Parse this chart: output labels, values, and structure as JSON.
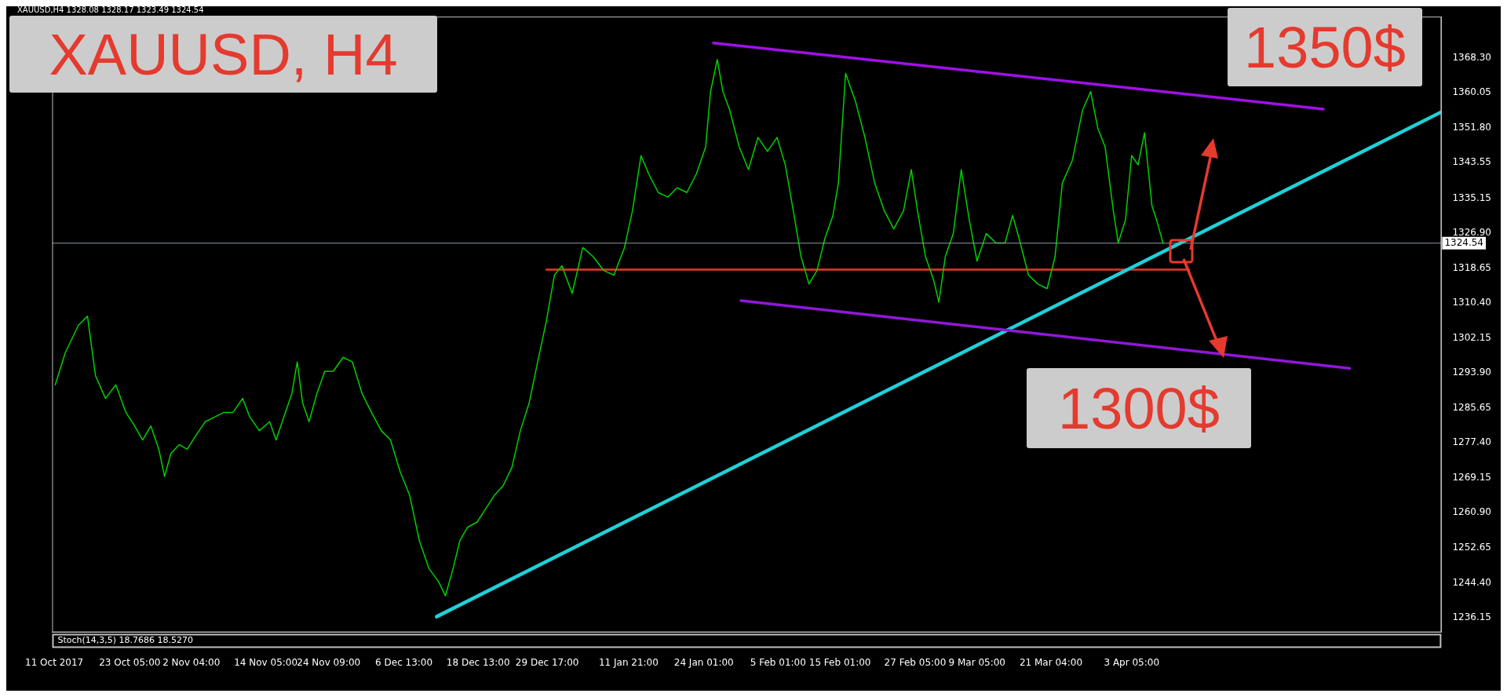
{
  "chart_data": {
    "type": "line",
    "title": "XAUUSD, H4",
    "subtitle": "XAUUSD,H4 1328.08 1328.17 1323.49 1324.54",
    "annotations": [
      "1350$",
      "1300$",
      "Stoch(14,3,5) 18.7686 18.5270"
    ],
    "xlim": [
      "2017-10-10T16:00",
      "2018-05-23T07:00"
    ],
    "ylim": [
      1232.7,
      1378
    ],
    "xticks": [
      {
        "value": "2017-10-11T00:00",
        "label": "11 Oct 2017"
      },
      {
        "value": "2017-10-23T05:00",
        "label": "23 Oct 05:00"
      },
      {
        "value": "2017-11-02T04:00",
        "label": "2 Nov 04:00"
      },
      {
        "value": "2017-11-14T05:00",
        "label": "14 Nov 05:00"
      },
      {
        "value": "2017-11-24T09:00",
        "label": "24 Nov 09:00"
      },
      {
        "value": "2017-12-06T13:00",
        "label": "6 Dec 13:00"
      },
      {
        "value": "2017-12-18T13:00",
        "label": "18 Dec 13:00"
      },
      {
        "value": "2017-12-29T17:00",
        "label": "29 Dec 17:00"
      },
      {
        "value": "2018-01-11T21:00",
        "label": "11 Jan 21:00"
      },
      {
        "value": "2018-01-24T01:00",
        "label": "24 Jan 01:00"
      },
      {
        "value": "2018-02-05T01:00",
        "label": "5 Feb 01:00"
      },
      {
        "value": "2018-02-15T01:00",
        "label": "15 Feb 01:00"
      },
      {
        "value": "2018-02-27T05:00",
        "label": "27 Feb 05:00"
      },
      {
        "value": "2018-03-09T05:00",
        "label": "9 Mar 05:00"
      },
      {
        "value": "2018-03-21T04:00",
        "label": "21 Mar 04:00"
      },
      {
        "value": "2018-04-03T05:00",
        "label": "3 Apr 05:00"
      }
    ],
    "yticks": [
      {
        "value": 1368.3,
        "label": "1368.30"
      },
      {
        "value": 1360.05,
        "label": "1360.05"
      },
      {
        "value": 1351.8,
        "label": "1351.80"
      },
      {
        "value": 1343.55,
        "label": "1343.55"
      },
      {
        "value": 1335.15,
        "label": "1335.15"
      },
      {
        "value": 1326.9,
        "label": "1326.90"
      },
      {
        "value": 1318.65,
        "label": "1318.65"
      },
      {
        "value": 1310.4,
        "label": "1310.40"
      },
      {
        "value": 1302.15,
        "label": "1302.15"
      },
      {
        "value": 1293.9,
        "label": "1293.90"
      },
      {
        "value": 1285.65,
        "label": "1285.65"
      },
      {
        "value": 1277.4,
        "label": "1277.40"
      },
      {
        "value": 1269.15,
        "label": "1269.15"
      },
      {
        "value": 1260.9,
        "label": "1260.90"
      },
      {
        "value": 1252.65,
        "label": "1252.65"
      },
      {
        "value": 1244.4,
        "label": "1244.40"
      },
      {
        "value": 1236.15,
        "label": "1236.15"
      }
    ],
    "grid": false,
    "legend": false,
    "marker": "none",
    "line_style": "solid",
    "ref_lines": [
      {
        "axis": "y",
        "value": 1324.54,
        "label": "1324.54",
        "color": "#8f9aa6"
      }
    ],
    "series": [
      {
        "type": "line",
        "color": "#00d000",
        "x": [
          "2017-10-11T04:00",
          "2017-10-12T19:00",
          "2017-10-14T22:00",
          "2017-10-16T09:00",
          "2017-10-17T16:00",
          "2017-10-19T07:00",
          "2017-10-20T23:00",
          "2017-10-22T14:00",
          "2017-10-24T00:00",
          "2017-10-25T07:00",
          "2017-10-26T15:00",
          "2017-10-27T22:00",
          "2017-10-28T20:00",
          "2017-10-29T21:00",
          "2017-10-31T05:00",
          "2017-11-01T12:00",
          "2017-11-02T22:00",
          "2017-11-04T10:00",
          "2017-11-05T22:00",
          "2017-11-07T10:00",
          "2017-11-08T22:00",
          "2017-11-10T11:00",
          "2017-11-11T15:00",
          "2017-11-13T04:00",
          "2017-11-14T20:00",
          "2017-11-15T21:00",
          "2017-11-17T03:00",
          "2017-11-18T10:00",
          "2017-11-19T07:00",
          "2017-11-20T04:00",
          "2017-11-21T05:00",
          "2017-11-22T11:00",
          "2017-11-23T18:00",
          "2017-11-25T03:00",
          "2017-11-26T17:00",
          "2017-11-28T05:00",
          "2017-11-29T19:00",
          "2017-12-01T07:00",
          "2017-12-02T21:00",
          "2017-12-04T09:00",
          "2017-12-05T23:00",
          "2017-12-07T11:00",
          "2017-12-09T01:00",
          "2017-12-10T14:00",
          "2017-12-12T04:00",
          "2017-12-13T06:00",
          "2017-12-14T12:00",
          "2017-12-15T14:00",
          "2017-12-16T20:00",
          "2017-12-18T09:00",
          "2017-12-19T19:00",
          "2017-12-21T05:00",
          "2017-12-22T14:00",
          "2017-12-24T00:00",
          "2017-12-25T09:00",
          "2017-12-26T19:00",
          "2017-12-28T04:00",
          "2017-12-29T14:00",
          "2017-12-30T21:00",
          "2018-01-01T02:00",
          "2018-01-02T18:00",
          "2018-01-04T11:00",
          "2018-01-06T03:00",
          "2018-01-07T20:00",
          "2018-01-09T12:00",
          "2018-01-11T05:00",
          "2018-01-12T12:00",
          "2018-01-13T21:00",
          "2018-01-15T03:00",
          "2018-01-16T16:00",
          "2018-01-18T05:00",
          "2018-01-19T17:00",
          "2018-01-21T07:00",
          "2018-01-22T20:00",
          "2018-01-24T08:00",
          "2018-01-25T03:00",
          "2018-01-26T05:00",
          "2018-01-27T03:00",
          "2018-01-28T05:00",
          "2018-01-29T18:00",
          "2018-01-31T06:00",
          "2018-02-01T19:00",
          "2018-02-03T08:00",
          "2018-02-04T21:00",
          "2018-02-06T05:00",
          "2018-02-07T12:00",
          "2018-02-08T18:00",
          "2018-02-10T01:00",
          "2018-02-11T08:00",
          "2018-02-12T15:00",
          "2018-02-13T22:00",
          "2018-02-14T19:00",
          "2018-02-15T23:00",
          "2018-02-17T13:00",
          "2018-02-19T02:00",
          "2018-02-20T16:00",
          "2018-02-22T05:00",
          "2018-02-23T18:00",
          "2018-02-25T08:00",
          "2018-02-26T14:00",
          "2018-02-27T14:00",
          "2018-02-28T21:00",
          "2018-03-02T04:00",
          "2018-03-03T01:00",
          "2018-03-04T02:00",
          "2018-03-05T09:00",
          "2018-03-06T16:00",
          "2018-03-07T23:00",
          "2018-03-09T05:00",
          "2018-03-10T17:00",
          "2018-03-12T06:00",
          "2018-03-13T18:00",
          "2018-03-14T23:00",
          "2018-03-16T00:00",
          "2018-03-17T13:00",
          "2018-03-19T01:00",
          "2018-03-20T13:00",
          "2018-03-21T20:00",
          "2018-03-23T00:00",
          "2018-03-24T15:00",
          "2018-03-26T07:00",
          "2018-03-27T14:00",
          "2018-03-28T18:00",
          "2018-03-29T22:00",
          "2018-03-31T06:00",
          "2018-04-01T01:00",
          "2018-04-02T05:00",
          "2018-04-03T05:00",
          "2018-04-04T06:00",
          "2018-04-05T07:00",
          "2018-04-06T12:00",
          "2018-04-07T06:00",
          "2018-04-08T07:00"
        ],
        "values": [
          1291.1,
          1298.7,
          1305.2,
          1307.3,
          1293.3,
          1287.9,
          1291.1,
          1284.6,
          1281.4,
          1278.1,
          1281.4,
          1275.9,
          1269.5,
          1274.9,
          1277.0,
          1275.9,
          1279.2,
          1282.4,
          1283.5,
          1284.6,
          1284.6,
          1287.9,
          1283.5,
          1280.3,
          1282.4,
          1278.1,
          1283.5,
          1289.0,
          1296.5,
          1286.8,
          1282.4,
          1289.0,
          1294.3,
          1294.3,
          1297.6,
          1296.5,
          1289.0,
          1284.6,
          1280.3,
          1278.1,
          1270.5,
          1265.1,
          1254.3,
          1247.8,
          1244.6,
          1241.3,
          1247.8,
          1254.3,
          1257.5,
          1258.7,
          1261.9,
          1265.1,
          1267.3,
          1271.6,
          1280.3,
          1286.8,
          1296.5,
          1306.2,
          1317.0,
          1319.2,
          1312.7,
          1323.5,
          1321.4,
          1318.1,
          1317.0,
          1323.5,
          1332.2,
          1345.2,
          1340.9,
          1336.5,
          1335.4,
          1337.6,
          1336.5,
          1340.9,
          1347.3,
          1360.3,
          1367.9,
          1360.3,
          1356.0,
          1347.3,
          1341.9,
          1349.5,
          1346.2,
          1349.5,
          1343.0,
          1332.2,
          1321.4,
          1314.9,
          1318.1,
          1325.7,
          1331.1,
          1338.7,
          1364.6,
          1358.1,
          1349.5,
          1338.7,
          1332.2,
          1327.9,
          1332.2,
          1341.9,
          1332.2,
          1321.4,
          1316.0,
          1310.6,
          1321.4,
          1326.8,
          1341.9,
          1330.0,
          1320.3,
          1326.8,
          1324.6,
          1324.6,
          1331.1,
          1325.7,
          1317.0,
          1314.9,
          1313.8,
          1321.4,
          1338.7,
          1344.1,
          1356.0,
          1360.3,
          1351.6,
          1347.3,
          1332.2,
          1324.6,
          1330.0,
          1345.2,
          1343.0,
          1350.6,
          1333.3,
          1330.0,
          1324.5
        ]
      },
      {
        "type": "line",
        "color": "#a010e8",
        "x": [
          "2018-01-25T14:00",
          "2018-05-04T05:00"
        ],
        "values": [
          1371.8,
          1356.2
        ]
      },
      {
        "type": "line",
        "color": "#9018d8",
        "x": [
          "2018-01-30T01:00",
          "2018-05-08T11:00"
        ],
        "values": [
          1311.0,
          1295.0
        ]
      },
      {
        "type": "line",
        "color": "#20d0d8",
        "x": [
          "2017-12-11T20:00",
          "2018-05-23T07:00"
        ],
        "values": [
          1236.4,
          1355.5
        ]
      },
      {
        "type": "line",
        "color": "#e83828",
        "x": [
          "2017-12-29T14:00",
          "2018-04-12T12:00"
        ],
        "values": [
          1318.3,
          1318.3
        ]
      }
    ]
  }
}
